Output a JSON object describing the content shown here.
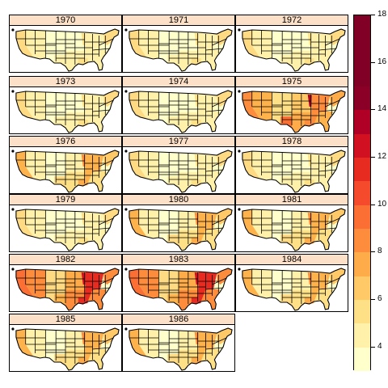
{
  "legend": {
    "breaks": [
      3,
      4,
      5,
      6,
      7,
      8,
      9,
      10,
      11,
      12,
      13,
      14,
      15,
      16,
      17,
      18
    ],
    "labels": [
      "4",
      "6",
      "8",
      "10",
      "12",
      "14",
      "16",
      "18"
    ],
    "label_values": [
      4,
      6,
      8,
      10,
      12,
      14,
      16,
      18
    ],
    "colors": [
      "#ffffcc",
      "#fff1a9",
      "#fee087",
      "#fec966",
      "#feab49",
      "#fd8d3c",
      "#fc6f34",
      "#f54a2b",
      "#e72b21",
      "#d11021",
      "#b10026",
      "#8a0026",
      "#800026",
      "#800026",
      "#800026"
    ]
  },
  "panels": [
    {
      "year": "1970",
      "level": "low"
    },
    {
      "year": "1971",
      "level": "low"
    },
    {
      "year": "1972",
      "level": "low"
    },
    {
      "year": "1973",
      "level": "low"
    },
    {
      "year": "1974",
      "level": "low"
    },
    {
      "year": "1975",
      "level": "high"
    },
    {
      "year": "1976",
      "level": "mid"
    },
    {
      "year": "1977",
      "level": "low"
    },
    {
      "year": "1978",
      "level": "low"
    },
    {
      "year": "1979",
      "level": "low"
    },
    {
      "year": "1980",
      "level": "mid"
    },
    {
      "year": "1981",
      "level": "mid"
    },
    {
      "year": "1982",
      "level": "veryhigh"
    },
    {
      "year": "1983",
      "level": "veryhigh"
    },
    {
      "year": "1984",
      "level": "mid"
    },
    {
      "year": "1985",
      "level": "mid"
    },
    {
      "year": "1986",
      "level": "mid"
    }
  ],
  "chart_data": {
    "type": "heatmap",
    "panels": [
      "1970",
      "1971",
      "1972",
      "1973",
      "1974",
      "1975",
      "1976",
      "1977",
      "1978",
      "1979",
      "1980",
      "1981",
      "1982",
      "1983",
      "1984",
      "1985",
      "1986"
    ],
    "colorkey_range": [
      3,
      18
    ],
    "colorkey_ticks": [
      4,
      6,
      8,
      10,
      12,
      14,
      16,
      18
    ]
  }
}
